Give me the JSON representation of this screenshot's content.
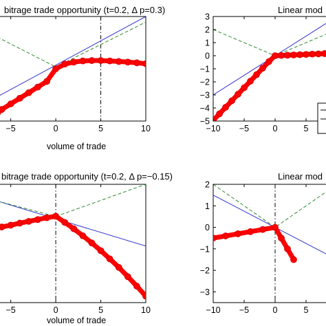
{
  "chart_data": [
    {
      "type": "line",
      "title": "bitrage trade opportunity (t=0.2, Δ p=0.3)",
      "xlabel": "volume of trade",
      "ylabel": "",
      "xlim": [
        -6.5,
        10
      ],
      "ylim": [
        -2.6,
        3
      ],
      "xticks": [
        -5,
        0,
        5,
        10
      ],
      "xtick_labels": [
        "−5",
        "0",
        "5",
        "10"
      ],
      "yticks": [],
      "vline": 5,
      "grid": false,
      "series": [
        {
          "style": "thin-blue",
          "x": [
            -6.5,
            10
          ],
          "y": [
            -1.3,
            3.0
          ]
        },
        {
          "style": "dashed-green",
          "x": [
            -6.5,
            0,
            10
          ],
          "y": [
            1.9,
            0.3,
            2.7
          ]
        },
        {
          "style": "thick-red",
          "x": [
            -6.5,
            -6,
            -5,
            -4,
            -3,
            -2,
            -1,
            0,
            1,
            2,
            3,
            4,
            5,
            6,
            7,
            8,
            9,
            10
          ],
          "y": [
            -2.2,
            -1.98,
            -1.68,
            -1.38,
            -1.08,
            -0.78,
            -0.48,
            0.2,
            0.45,
            0.56,
            0.62,
            0.64,
            0.64,
            0.62,
            0.59,
            0.56,
            0.52,
            0.47
          ]
        }
      ]
    },
    {
      "type": "line",
      "title": "Linear mod",
      "xlabel": "",
      "ylabel": "",
      "xlim": [
        -10,
        10
      ],
      "ylim": [
        -5,
        3
      ],
      "xticks": [
        -10,
        -5,
        0,
        5
      ],
      "xtick_labels": [
        "−10",
        "−5",
        "0",
        "5"
      ],
      "yticks": [
        -5,
        -4,
        -3,
        -2,
        -1,
        0,
        1,
        2,
        3
      ],
      "ytick_labels": [
        "−5",
        "−4",
        "−3",
        "−2",
        "−1",
        "0",
        "1",
        "2",
        "3"
      ],
      "vline": null,
      "grid": false,
      "legend_box": true,
      "series": [
        {
          "style": "thin-blue",
          "x": [
            -10,
            10
          ],
          "y": [
            -3.0,
            3.0
          ]
        },
        {
          "style": "dashed-green",
          "x": [
            -10,
            0,
            10
          ],
          "y": [
            2.0,
            0.0,
            2.0
          ]
        },
        {
          "style": "thick-red",
          "x": [
            -10,
            -9,
            -8,
            -7,
            -6,
            -5,
            -4,
            -3,
            -2,
            -1,
            0,
            1,
            2,
            3,
            4,
            5,
            6,
            7,
            8,
            9,
            10
          ],
          "y": [
            -4.95,
            -4.45,
            -3.95,
            -3.45,
            -2.95,
            -2.45,
            -1.95,
            -1.45,
            -0.95,
            -0.45,
            0.0,
            0.02,
            0.04,
            0.06,
            0.08,
            0.1,
            0.12,
            0.14,
            0.16,
            0.18,
            0.2
          ]
        }
      ]
    },
    {
      "type": "line",
      "title": "bitrage trade opportunity (t=0.2, Δ p=−0.15)",
      "xlabel": "volume of trade",
      "ylabel": "",
      "xlim": [
        -6.5,
        10
      ],
      "ylim": [
        -3.4,
        1.2
      ],
      "xticks": [
        -5,
        0,
        5,
        10
      ],
      "xtick_labels": [
        "−5",
        "0",
        "5",
        "10"
      ],
      "yticks": [],
      "vline": 0,
      "grid": false,
      "series": [
        {
          "style": "thin-blue",
          "x": [
            -6.5,
            10
          ],
          "y": [
            0.55,
            -1.2
          ]
        },
        {
          "style": "dashed-green",
          "x": [
            -6.5,
            0,
            10
          ],
          "y": [
            0.55,
            -0.05,
            1.2
          ]
        },
        {
          "style": "thick-red",
          "x": [
            -6.5,
            -6,
            -5,
            -4,
            -3,
            -2,
            -1,
            0,
            1,
            2,
            3,
            4,
            5,
            6,
            7,
            8,
            9,
            10
          ],
          "y": [
            -0.5,
            -0.46,
            -0.39,
            -0.31,
            -0.24,
            -0.17,
            -0.1,
            -0.04,
            -0.28,
            -0.53,
            -0.8,
            -1.08,
            -1.38,
            -1.7,
            -2.03,
            -2.39,
            -2.76,
            -3.15
          ]
        }
      ]
    },
    {
      "type": "line",
      "title": "Linear mod",
      "xlabel": "",
      "ylabel": "",
      "xlim": [
        -10,
        10
      ],
      "ylim": [
        -3.5,
        2
      ],
      "xticks": [
        -10,
        -5,
        0,
        5
      ],
      "xtick_labels": [
        "−10",
        "−5",
        "0",
        "5"
      ],
      "yticks": [
        -3,
        -2,
        -1,
        0,
        1,
        2
      ],
      "ytick_labels": [
        "−3",
        "−2",
        "−1",
        "0",
        "1",
        "2"
      ],
      "vline": 0,
      "grid": false,
      "series": [
        {
          "style": "thin-blue",
          "x": [
            -10,
            10
          ],
          "y": [
            1.5,
            -1.5
          ]
        },
        {
          "style": "dashed-green",
          "x": [
            -10,
            0,
            10
          ],
          "y": [
            2.0,
            0.0,
            2.0
          ]
        },
        {
          "style": "thick-red",
          "x": [
            -10,
            -8,
            -6,
            -4,
            -2,
            0,
            1,
            2,
            3
          ],
          "y": [
            -0.5,
            -0.4,
            -0.3,
            -0.2,
            -0.1,
            0.0,
            -0.5,
            -1.0,
            -1.5
          ]
        }
      ]
    }
  ]
}
